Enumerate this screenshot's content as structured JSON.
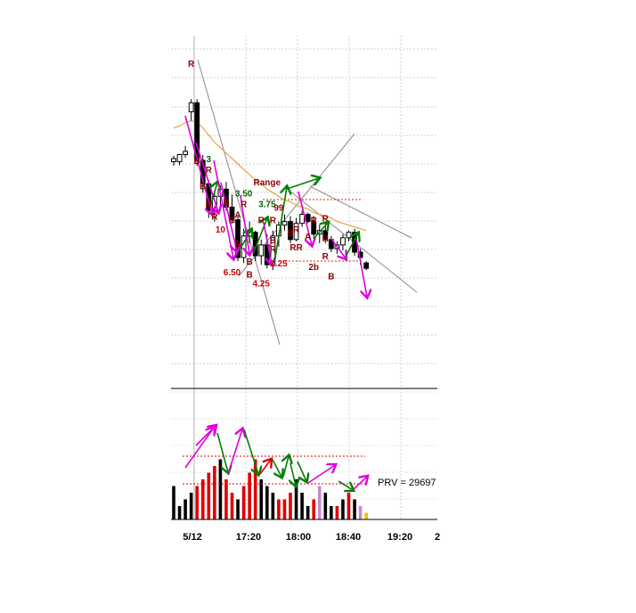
{
  "chart_data": {
    "type": "candlestick",
    "grid": true,
    "x_tick_labels": [
      "5/12",
      "17:20",
      "18:00",
      "18:40",
      "19:20",
      "2"
    ],
    "candles": [
      {
        "o": 0.3,
        "h": 0.46,
        "l": -0.1,
        "c": 0.12,
        "bull": true
      },
      {
        "o": 0.12,
        "h": 0.56,
        "l": -0.08,
        "c": 0.52,
        "bull": true
      },
      {
        "o": 0.52,
        "h": 1.0,
        "l": 0.35,
        "c": 0.7,
        "bull": true
      },
      {
        "o": 2.9,
        "h": 3.6,
        "l": 2.4,
        "c": 3.4,
        "bull": true
      },
      {
        "o": 3.4,
        "h": 3.6,
        "l": -0.1,
        "c": 0.2,
        "bull": false
      },
      {
        "o": 0.2,
        "h": 0.5,
        "l": -1.6,
        "c": -1.1,
        "bull": false
      },
      {
        "o": -1.1,
        "h": -0.9,
        "l": -3.0,
        "c": -2.6,
        "bull": false
      },
      {
        "o": -2.6,
        "h": -1.5,
        "l": -3.2,
        "c": -1.8,
        "bull": true
      },
      {
        "o": -1.8,
        "h": -1.2,
        "l": -2.6,
        "c": -1.4,
        "bull": true
      },
      {
        "o": -1.4,
        "h": -1.0,
        "l": -2.6,
        "c": -2.4,
        "bull": false
      },
      {
        "o": -2.4,
        "h": -1.7,
        "l": -3.3,
        "c": -3.1,
        "bull": false
      },
      {
        "o": -3.1,
        "h": -2.9,
        "l": -5.4,
        "c": -5.2,
        "bull": false
      },
      {
        "o": -5.2,
        "h": -3.6,
        "l": -5.5,
        "c": -4.0,
        "bull": true
      },
      {
        "o": -4.0,
        "h": -3.2,
        "l": -4.4,
        "c": -3.8,
        "bull": true
      },
      {
        "o": -3.8,
        "h": -3.7,
        "l": -5.4,
        "c": -5.1,
        "bull": false
      },
      {
        "o": -5.1,
        "h": -4.2,
        "l": -5.6,
        "c": -4.5,
        "bull": true
      },
      {
        "o": -4.5,
        "h": -3.9,
        "l": -5.8,
        "c": -5.6,
        "bull": false
      },
      {
        "o": -5.6,
        "h": -3.7,
        "l": -5.9,
        "c": -4.0,
        "bull": true
      },
      {
        "o": -4.0,
        "h": -3.2,
        "l": -4.6,
        "c": -3.4,
        "bull": true
      },
      {
        "o": -3.4,
        "h": -2.8,
        "l": -3.7,
        "c": -3.2,
        "bull": true
      },
      {
        "o": -3.2,
        "h": -2.9,
        "l": -4.4,
        "c": -4.2,
        "bull": false
      },
      {
        "o": -4.2,
        "h": -3.0,
        "l": -4.3,
        "c": -3.3,
        "bull": true
      },
      {
        "o": -3.3,
        "h": -2.6,
        "l": -3.5,
        "c": -2.8,
        "bull": true
      },
      {
        "o": -2.8,
        "h": -2.7,
        "l": -3.3,
        "c": -3.2,
        "bull": false
      },
      {
        "o": -3.2,
        "h": -2.9,
        "l": -4.1,
        "c": -3.9,
        "bull": false
      },
      {
        "o": -3.9,
        "h": -3.4,
        "l": -4.4,
        "c": -3.7,
        "bull": true
      },
      {
        "o": -3.7,
        "h": -3.2,
        "l": -4.4,
        "c": -4.2,
        "bull": false
      },
      {
        "o": -4.2,
        "h": -4.0,
        "l": -4.9,
        "c": -4.7,
        "bull": false
      },
      {
        "o": -4.7,
        "h": -4.3,
        "l": -5.0,
        "c": -4.5,
        "bull": true
      },
      {
        "o": -4.5,
        "h": -3.9,
        "l": -4.8,
        "c": -4.1,
        "bull": true
      },
      {
        "o": -4.1,
        "h": -3.7,
        "l": -4.3,
        "c": -3.8,
        "bull": true
      },
      {
        "o": -3.8,
        "h": -3.6,
        "l": -5.1,
        "c": -4.9,
        "bull": false
      },
      {
        "o": -4.9,
        "h": -4.7,
        "l": -5.6,
        "c": -5.2,
        "bull": false
      },
      {
        "o": -5.5,
        "h": -5.4,
        "l": -5.9,
        "c": -5.8,
        "bull": false
      }
    ],
    "moving_average": [
      2.0,
      2.1,
      2.3,
      2.4,
      2.3,
      2.0,
      1.6,
      1.2,
      0.9,
      0.6,
      0.3,
      0.0,
      -0.3,
      -0.6,
      -0.9,
      -1.1,
      -1.4,
      -1.6,
      -1.8,
      -2.0,
      -2.1,
      -2.3,
      -2.4,
      -2.5,
      -2.7,
      -2.8,
      -2.9,
      -3.0,
      -3.2,
      -3.3,
      -3.4,
      -3.5,
      -3.6,
      -3.7
    ],
    "volume": [
      5,
      2,
      3,
      4,
      5,
      6,
      7,
      8,
      9,
      6,
      4,
      3,
      5,
      7,
      9,
      6,
      5,
      4,
      3,
      3,
      4,
      6,
      4,
      2,
      3,
      5,
      4,
      2,
      2,
      3,
      4,
      3,
      2,
      1
    ],
    "volume_colors": [
      "black",
      "black",
      "black",
      "black",
      "red",
      "red",
      "red",
      "red",
      "black",
      "red",
      "red",
      "black",
      "red",
      "red",
      "red",
      "black",
      "black",
      "black",
      "red",
      "red",
      "red",
      "black",
      "black",
      "black",
      "red",
      "plum",
      "black",
      "black",
      "red",
      "black",
      "red",
      "black",
      "plum",
      "gold"
    ],
    "annotations": [
      {
        "text": "R",
        "i": 3,
        "v": 5.4,
        "color": "#8b0000"
      },
      {
        "text": "B",
        "i": 4,
        "v": 0.0,
        "color": "#8b0000"
      },
      {
        "text": "3",
        "i": 6,
        "v": 0.1,
        "color": "#006400"
      },
      {
        "text": "R",
        "i": 6,
        "v": -0.5,
        "color": "#8b0000"
      },
      {
        "text": "B",
        "i": 5,
        "v": -1.4,
        "color": "#8b0000"
      },
      {
        "text": "B",
        "i": 6,
        "v": -2.4,
        "color": "#8b0000"
      },
      {
        "text": "R",
        "i": 7,
        "v": -3.1,
        "color": "#8b0000"
      },
      {
        "text": "10",
        "i": 8,
        "v": -3.8,
        "color": "#cc0000"
      },
      {
        "text": "B",
        "i": 9,
        "v": -2.3,
        "color": "#8b0000"
      },
      {
        "text": "B",
        "i": 10,
        "v": -3.3,
        "color": "#8b0000"
      },
      {
        "text": "3.50",
        "i": 12,
        "v": -1.8,
        "color": "#006400"
      },
      {
        "text": "R",
        "i": 12,
        "v": -2.4,
        "color": "#8b0000"
      },
      {
        "text": "A",
        "i": 11,
        "v": -3.0,
        "color": "#8b0000"
      },
      {
        "text": "A",
        "i": 11,
        "v": -4.6,
        "color": "#8b0000"
      },
      {
        "text": "6.50",
        "i": 10,
        "v": -6.2,
        "color": "#cc0000"
      },
      {
        "text": "B",
        "i": 13,
        "v": -5.6,
        "color": "#8b0000"
      },
      {
        "text": "B",
        "i": 13,
        "v": -6.3,
        "color": "#8b0000"
      },
      {
        "text": "4.25",
        "i": 15,
        "v": -6.8,
        "color": "#cc0000"
      },
      {
        "text": "Range",
        "i": 16,
        "v": -1.2,
        "color": "#8b0000"
      },
      {
        "text": "3.75",
        "i": 16,
        "v": -2.4,
        "color": "#006400"
      },
      {
        "text": "R",
        "i": 15,
        "v": -3.3,
        "color": "#8b0000"
      },
      {
        "text": "R",
        "i": 17,
        "v": -3.3,
        "color": "#8b0000"
      },
      {
        "text": "B",
        "i": 17,
        "v": -4.4,
        "color": "#8b0000"
      },
      {
        "text": "R",
        "i": 17,
        "v": -4.9,
        "color": "#8b0000"
      },
      {
        "text": "99",
        "i": 18,
        "v": -2.6,
        "color": "#8b0000"
      },
      {
        "text": "2.25",
        "i": 18,
        "v": -5.7,
        "color": "#cc0000"
      },
      {
        "text": "B",
        "i": 20,
        "v": -4.0,
        "color": "#8b0000"
      },
      {
        "text": "R",
        "i": 21,
        "v": -3.8,
        "color": "#8b0000"
      },
      {
        "text": "RR",
        "i": 21,
        "v": -4.8,
        "color": "#8b0000"
      },
      {
        "text": "A",
        "i": 23,
        "v": -4.2,
        "color": "#8b0000"
      },
      {
        "text": "R",
        "i": 24,
        "v": -3.3,
        "color": "#8b0000"
      },
      {
        "text": "R",
        "i": 26,
        "v": -3.2,
        "color": "#8b0000"
      },
      {
        "text": "R",
        "i": 26,
        "v": -4.3,
        "color": "#8b0000"
      },
      {
        "text": "R",
        "i": 26,
        "v": -5.3,
        "color": "#8b0000"
      },
      {
        "text": "2b",
        "i": 24,
        "v": -5.9,
        "color": "#8b0000"
      },
      {
        "text": "B",
        "i": 27,
        "v": -6.4,
        "color": "#8b0000"
      }
    ],
    "volume_label": "PRV = 29697"
  }
}
